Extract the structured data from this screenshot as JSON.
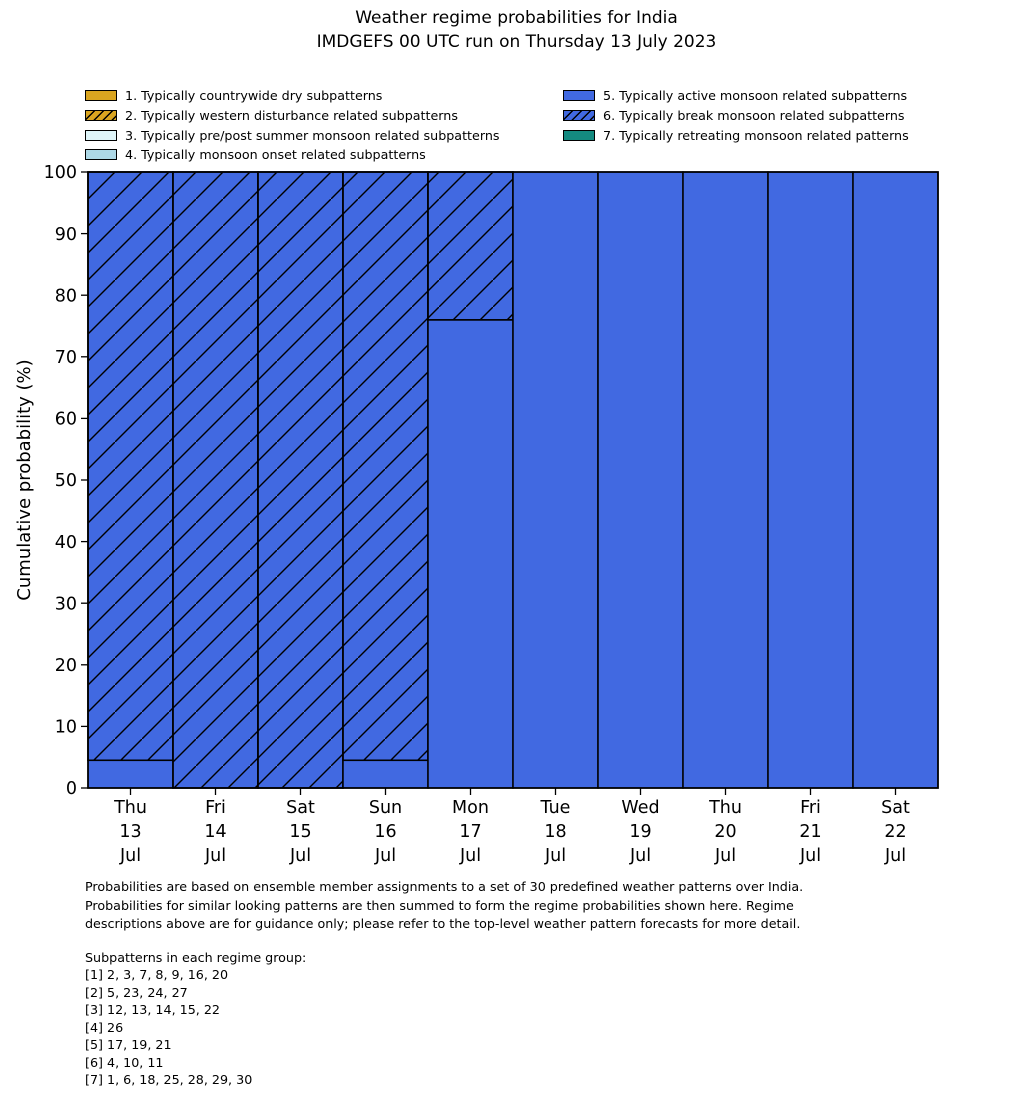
{
  "title": {
    "line1": "Weather regime probabilities for India",
    "line2": "IMDGEFS 00 UTC run on Thursday 13 July 2023"
  },
  "legend": {
    "items": [
      {
        "id": 1,
        "label": "1. Typically countrywide dry subpatterns",
        "color": "#DAA520",
        "hatch": false,
        "column": "left"
      },
      {
        "id": 2,
        "label": "2. Typically western disturbance related subpatterns",
        "color": "#DAA520",
        "hatch": true,
        "column": "left"
      },
      {
        "id": 3,
        "label": "3. Typically pre/post summer monsoon related subpatterns",
        "color": "#DFF5F9",
        "hatch": false,
        "column": "left"
      },
      {
        "id": 4,
        "label": "4. Typically monsoon onset related subpatterns",
        "color": "#ADD8E6",
        "hatch": false,
        "column": "left"
      },
      {
        "id": 5,
        "label": "5. Typically active monsoon related subpatterns",
        "color": "#4169E1",
        "hatch": false,
        "column": "right"
      },
      {
        "id": 6,
        "label": "6. Typically break monsoon related subpatterns",
        "color": "#4169E1",
        "hatch": true,
        "column": "right"
      },
      {
        "id": 7,
        "label": "7. Typically retreating monsoon related patterns",
        "color": "#148A80",
        "hatch": false,
        "column": "right"
      }
    ]
  },
  "chart_data": {
    "type": "bar",
    "stacked": true,
    "title": "Weather regime probabilities for India",
    "xlabel": "",
    "ylabel": "Cumulative probability (%)",
    "ylim": [
      0,
      100
    ],
    "yticks": [
      0,
      10,
      20,
      30,
      40,
      50,
      60,
      70,
      80,
      90,
      100
    ],
    "grid": false,
    "legend_position": "top",
    "edge_color": "#000000",
    "bars": [
      {
        "day": "Thu",
        "date": "13",
        "month": "Jul",
        "segments": [
          {
            "regime": 5,
            "value": 4.5
          },
          {
            "regime": 6,
            "value": 95.5
          }
        ]
      },
      {
        "day": "Fri",
        "date": "14",
        "month": "Jul",
        "segments": [
          {
            "regime": 6,
            "value": 100
          }
        ]
      },
      {
        "day": "Sat",
        "date": "15",
        "month": "Jul",
        "segments": [
          {
            "regime": 6,
            "value": 100
          }
        ]
      },
      {
        "day": "Sun",
        "date": "16",
        "month": "Jul",
        "segments": [
          {
            "regime": 5,
            "value": 4.5
          },
          {
            "regime": 6,
            "value": 95.5
          }
        ]
      },
      {
        "day": "Mon",
        "date": "17",
        "month": "Jul",
        "segments": [
          {
            "regime": 5,
            "value": 76
          },
          {
            "regime": 6,
            "value": 24
          }
        ]
      },
      {
        "day": "Tue",
        "date": "18",
        "month": "Jul",
        "segments": [
          {
            "regime": 5,
            "value": 100
          }
        ]
      },
      {
        "day": "Wed",
        "date": "19",
        "month": "Jul",
        "segments": [
          {
            "regime": 5,
            "value": 100
          }
        ]
      },
      {
        "day": "Thu",
        "date": "20",
        "month": "Jul",
        "segments": [
          {
            "regime": 5,
            "value": 100
          }
        ]
      },
      {
        "day": "Fri",
        "date": "21",
        "month": "Jul",
        "segments": [
          {
            "regime": 5,
            "value": 100
          }
        ]
      },
      {
        "day": "Sat",
        "date": "22",
        "month": "Jul",
        "segments": [
          {
            "regime": 5,
            "value": 100
          }
        ]
      }
    ]
  },
  "footer": {
    "lines": [
      "Probabilities are based on ensemble member assignments to a set of 30 predefined weather patterns over India.",
      "Probabilities for similar looking patterns are then summed to form the regime probabilities shown here. Regime",
      "descriptions above are for guidance only; please refer to the top-level weather pattern forecasts for more detail."
    ]
  },
  "subpatterns": {
    "heading": "Subpatterns in each regime group:",
    "lines": [
      "[1] 2, 3, 7, 8, 9, 16, 20",
      "[2] 5, 23, 24, 27",
      "[3] 12, 13, 14, 15, 22",
      "[4] 26",
      "[5] 17, 19, 21",
      "[6] 4, 10, 11",
      "[7] 1, 6, 18, 25, 28, 29, 30"
    ]
  }
}
